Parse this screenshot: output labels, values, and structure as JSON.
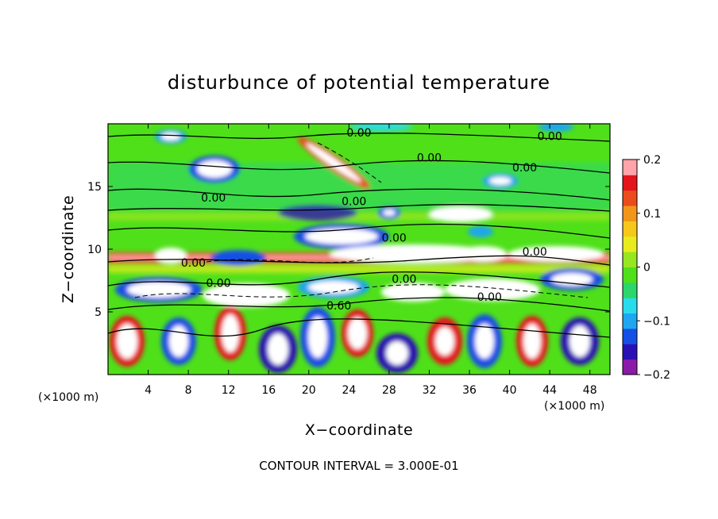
{
  "chart_data": {
    "type": "heatmap",
    "title": "disturbunce of potential temperature",
    "xlabel": "X−coordinate",
    "ylabel": "Z−coordinate",
    "x_unit": "(×1000 m)",
    "y_unit": "(×1000 m)",
    "xlim": [
      0,
      50
    ],
    "ylim": [
      0,
      20
    ],
    "x_ticks": [
      4,
      8,
      12,
      16,
      20,
      24,
      28,
      32,
      36,
      40,
      44,
      48
    ],
    "y_ticks": [
      5,
      10,
      15
    ],
    "colorbar": {
      "min": -0.2,
      "max": 0.2,
      "ticks": [
        0.2,
        0.1,
        0,
        -0.1,
        -0.2
      ],
      "tick_labels": [
        "0.2",
        "0.1",
        "0",
        "−0.1",
        "−0.2"
      ],
      "colors": [
        "#8c1aa8",
        "#2a10b4",
        "#1450e6",
        "#1ea6f0",
        "#29dcec",
        "#2bd66a",
        "#4fe01a",
        "#96e620",
        "#e8ec1c",
        "#f6c81a",
        "#f2961a",
        "#ec4c1c",
        "#e4141c",
        "#ffa4a8"
      ]
    },
    "contour_interval": "CONTOUR INTERVAL = 3.000E-01",
    "contour_labels": [
      {
        "text": "0.00",
        "x": 25,
        "z": 19.0
      },
      {
        "text": "0.00",
        "x": 44,
        "z": 18.7
      },
      {
        "text": "0.00",
        "x": 32,
        "z": 17.0
      },
      {
        "text": "0.00",
        "x": 41.5,
        "z": 16.2
      },
      {
        "text": "0.00",
        "x": 10.5,
        "z": 13.8
      },
      {
        "text": "0.00",
        "x": 24.5,
        "z": 13.5
      },
      {
        "text": "0.00",
        "x": 28.5,
        "z": 10.6
      },
      {
        "text": "0.00",
        "x": 42.5,
        "z": 9.5
      },
      {
        "text": "0.00",
        "x": 8.5,
        "z": 8.6
      },
      {
        "text": "0.00",
        "x": 29.5,
        "z": 7.3
      },
      {
        "text": "0.00",
        "x": 11,
        "z": 7.0
      },
      {
        "text": "0.00",
        "x": 38,
        "z": 5.9
      },
      {
        "text": "0.60",
        "x": 23,
        "z": 5.2
      }
    ]
  }
}
